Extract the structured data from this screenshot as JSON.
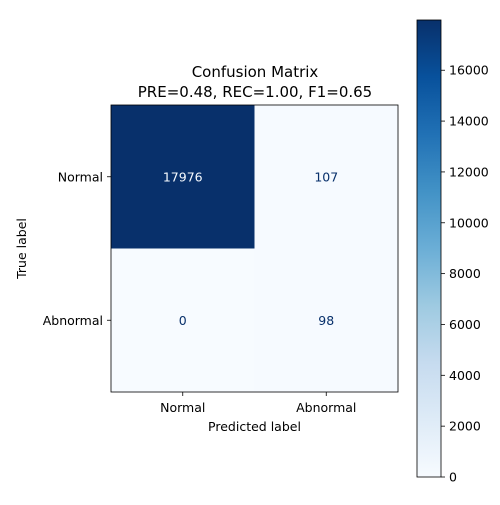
{
  "chart_data": {
    "type": "heatmap",
    "title": "Confusion Matrix",
    "subtitle": "PRE=0.48, REC=1.00, F1=0.65",
    "xlabel": "Predicted label",
    "ylabel": "True label",
    "x_categories": [
      "Normal",
      "Abnormal"
    ],
    "y_categories": [
      "Normal",
      "Abnormal"
    ],
    "values": [
      [
        17976,
        107
      ],
      [
        0,
        98
      ]
    ],
    "colormap": "Blues",
    "colorbar": {
      "range": [
        0,
        17976
      ],
      "ticks": [
        0,
        2000,
        4000,
        6000,
        8000,
        10000,
        12000,
        14000,
        16000
      ],
      "tick_labels": [
        "0",
        "2000",
        "4000",
        "6000",
        "8000",
        "10000",
        "12000",
        "14000",
        "16000"
      ]
    },
    "colors": {
      "low": "#f7fbff",
      "high": "#08306b",
      "text_light": "#f7fbff",
      "text_dark": "#08306b"
    },
    "grid": false
  }
}
